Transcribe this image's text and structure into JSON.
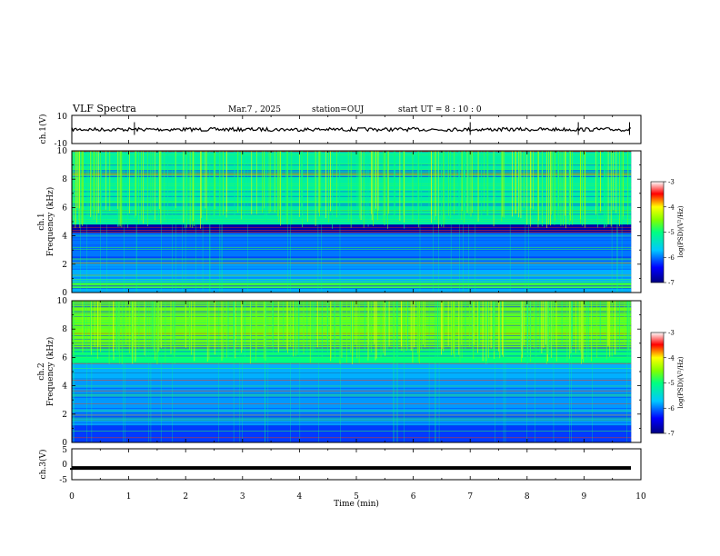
{
  "chart_data": {
    "type": "heatmap",
    "header": {
      "title": "VLF Spectra",
      "date": "Mar.7 , 2025",
      "station": "station=OUJ",
      "start_ut": "start UT = 8 : 10 : 0"
    },
    "xlabel": "Time (min)",
    "xlim": [
      0,
      10
    ],
    "x_ticks": [
      "0",
      "1",
      "2",
      "3",
      "4",
      "5",
      "6",
      "7",
      "8",
      "9",
      "10"
    ],
    "data_end_min": 9.83,
    "panels": [
      {
        "type": "line",
        "ylabel": "ch.1(V)",
        "ylim": [
          -10,
          10
        ],
        "y_ticks": [
          "10",
          "-10"
        ],
        "level": 0
      },
      {
        "type": "heatmap",
        "ylabel_top": "ch.1",
        "ylabel": "Frequency (kHz)",
        "ylim": [
          0,
          10
        ],
        "y_ticks": [
          "0",
          "2",
          "4",
          "6",
          "8",
          "10"
        ],
        "colorbar": {
          "label": "log(PSD)(V²/Hz)",
          "range": [
            -7,
            -3
          ],
          "ticks": [
            "-3",
            "-4",
            "-5",
            "-6",
            "-7"
          ]
        },
        "bands": [
          {
            "f": [
              0,
              0.3
            ],
            "level": 0.3
          },
          {
            "f": [
              0.3,
              0.7
            ],
            "level": 0.55
          },
          {
            "f": [
              0.7,
              2.2
            ],
            "level": 0.3
          },
          {
            "f": [
              2.2,
              4.2
            ],
            "level": 0.25
          },
          {
            "f": [
              4.2,
              4.8
            ],
            "level": 0.05
          },
          {
            "f": [
              4.8,
              10
            ],
            "level": 0.45
          }
        ]
      },
      {
        "type": "heatmap",
        "ylabel_top": "ch.2",
        "ylabel": "Frequency (kHz)",
        "ylim": [
          0,
          10
        ],
        "y_ticks": [
          "0",
          "2",
          "4",
          "6",
          "8",
          "10"
        ],
        "colorbar": {
          "label": "log(PSD)(V²/Hz)",
          "range": [
            -7,
            -3
          ],
          "ticks": [
            "-3",
            "-4",
            "-5",
            "-6",
            "-7"
          ]
        },
        "bands": [
          {
            "f": [
              0,
              1.2
            ],
            "level": 0.2
          },
          {
            "f": [
              1.2,
              4.5
            ],
            "level": 0.28
          },
          {
            "f": [
              4.5,
              5.6
            ],
            "level": 0.3
          },
          {
            "f": [
              5.6,
              6.6
            ],
            "level": 0.5
          },
          {
            "f": [
              6.6,
              10
            ],
            "level": 0.6
          }
        ]
      },
      {
        "type": "line",
        "ylabel": "ch.3(V)",
        "ylim": [
          -5,
          5
        ],
        "y_ticks": [
          "5",
          "0",
          "-5"
        ],
        "level": -1.2
      }
    ]
  }
}
